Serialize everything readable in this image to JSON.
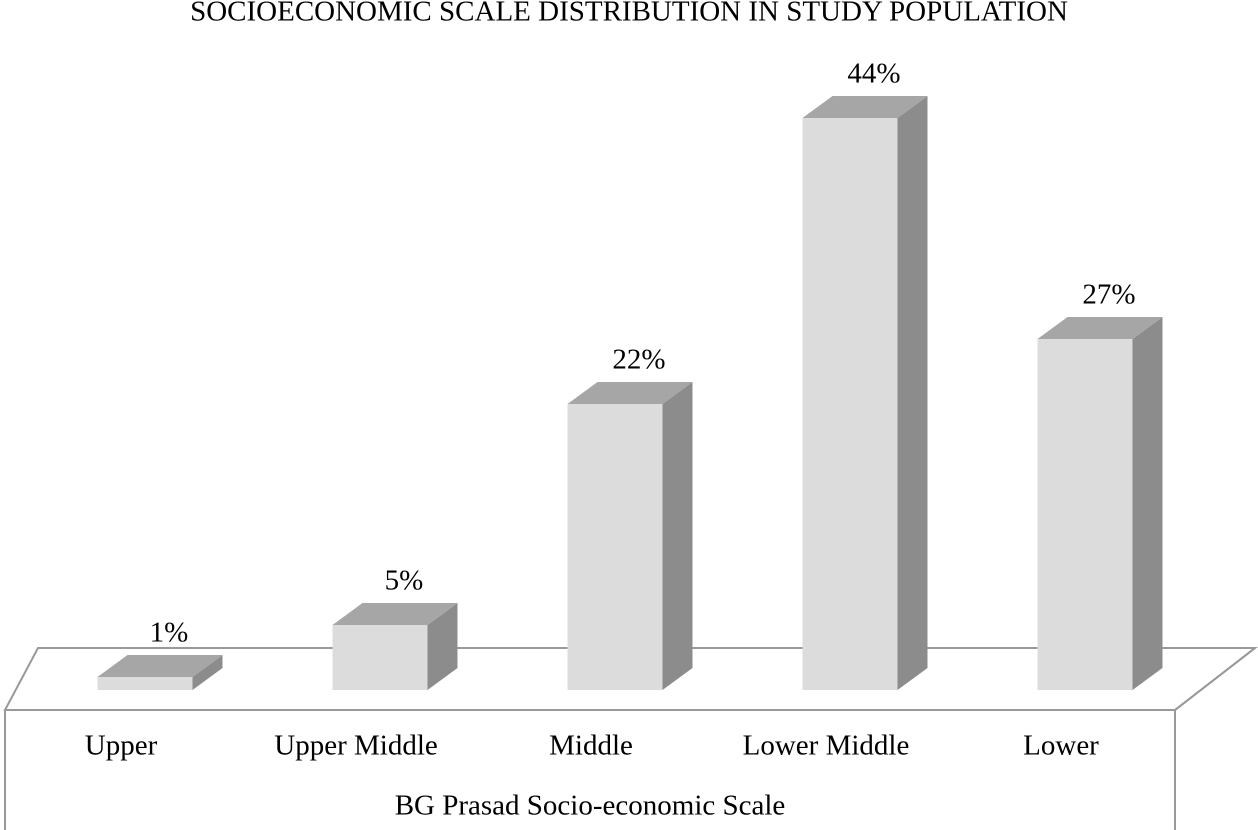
{
  "chart_data": {
    "type": "bar3d",
    "title": "SOCIOECONOMIC SCALE DISTRIBUTION IN STUDY POPULATION",
    "x_label": "BG Prasad Socio-economic Scale",
    "categories": [
      "Upper",
      "Upper Middle",
      "Middle",
      "Lower Middle",
      "Lower"
    ],
    "values": [
      1,
      5,
      22,
      44,
      27
    ],
    "value_labels": [
      "1%",
      "5%",
      "22%",
      "44%",
      "27%"
    ],
    "color": "#dcdcdc"
  }
}
